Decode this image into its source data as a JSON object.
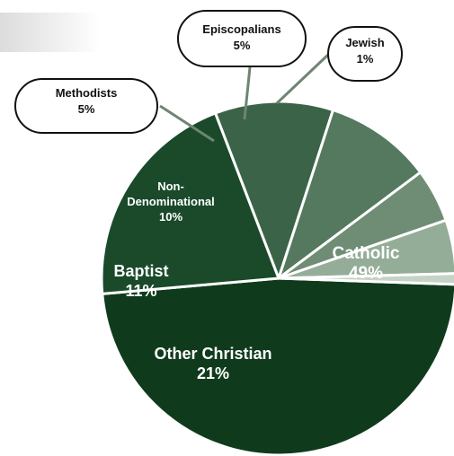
{
  "chart_data": {
    "type": "pie",
    "title": "",
    "slices": [
      {
        "label": "Catholic",
        "value": 49,
        "value_label": "49%",
        "color": "#0f3b1c",
        "label_style": "inside",
        "lines": [
          "Catholic",
          "49%"
        ]
      },
      {
        "label": "Other Christian",
        "value": 21,
        "value_label": "21%",
        "color": "#1a4a2a",
        "label_style": "inside",
        "lines": [
          "Other Christian",
          "21%"
        ]
      },
      {
        "label": "Baptist",
        "value": 11,
        "value_label": "11%",
        "color": "#3b6347",
        "label_style": "inside",
        "lines": [
          "Baptist",
          "11%"
        ]
      },
      {
        "label": "Non-Denominational",
        "value": 10,
        "value_label": "10%",
        "color": "#55795e",
        "label_style": "inside",
        "lines": [
          "Non-",
          "Denominational",
          "10%"
        ]
      },
      {
        "label": "Methodists",
        "value": 5,
        "value_label": "5%",
        "color": "#6f8d75",
        "label_style": "callout",
        "lines": [
          "Methodists",
          "5%"
        ]
      },
      {
        "label": "Episcopalians",
        "value": 5,
        "value_label": "5%",
        "color": "#94ad98",
        "label_style": "callout",
        "lines": [
          "Episcopalians",
          "5%"
        ]
      },
      {
        "label": "Jewish",
        "value": 1,
        "value_label": "1%",
        "color": "#c5d3c6",
        "label_style": "callout",
        "lines": [
          "Jewish",
          "1%"
        ]
      }
    ]
  }
}
